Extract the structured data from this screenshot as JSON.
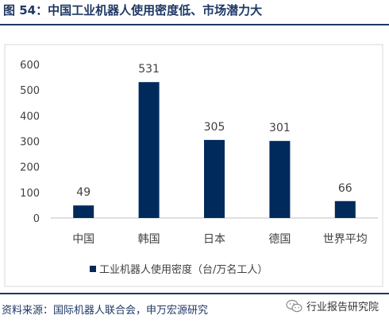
{
  "figure": {
    "title": "图 54：中国工业机器人使用密度低、市场潜力大"
  },
  "chart_data": {
    "type": "bar",
    "categories": [
      "中国",
      "韩国",
      "日本",
      "德国",
      "世界平均"
    ],
    "series": [
      {
        "name": "工业机器人使用密度（台/万名工人）",
        "values": [
          49,
          531,
          305,
          301,
          66
        ]
      }
    ],
    "data_labels": [
      "49",
      "531",
      "305",
      "301",
      "66"
    ],
    "ylim": [
      0,
      600
    ],
    "yticks": [
      0,
      100,
      200,
      300,
      400,
      500,
      600
    ],
    "ytick_labels": [
      "0",
      "100",
      "200",
      "300",
      "400",
      "500",
      "600"
    ],
    "grid": false,
    "legend_position": "bottom",
    "bar_color": "#002a5c"
  },
  "footer": {
    "source": "资料来源：国际机器人联合会，申万宏源研究",
    "watermark": "行业报告研究院",
    "watermark_icon": "wechat-icon"
  }
}
